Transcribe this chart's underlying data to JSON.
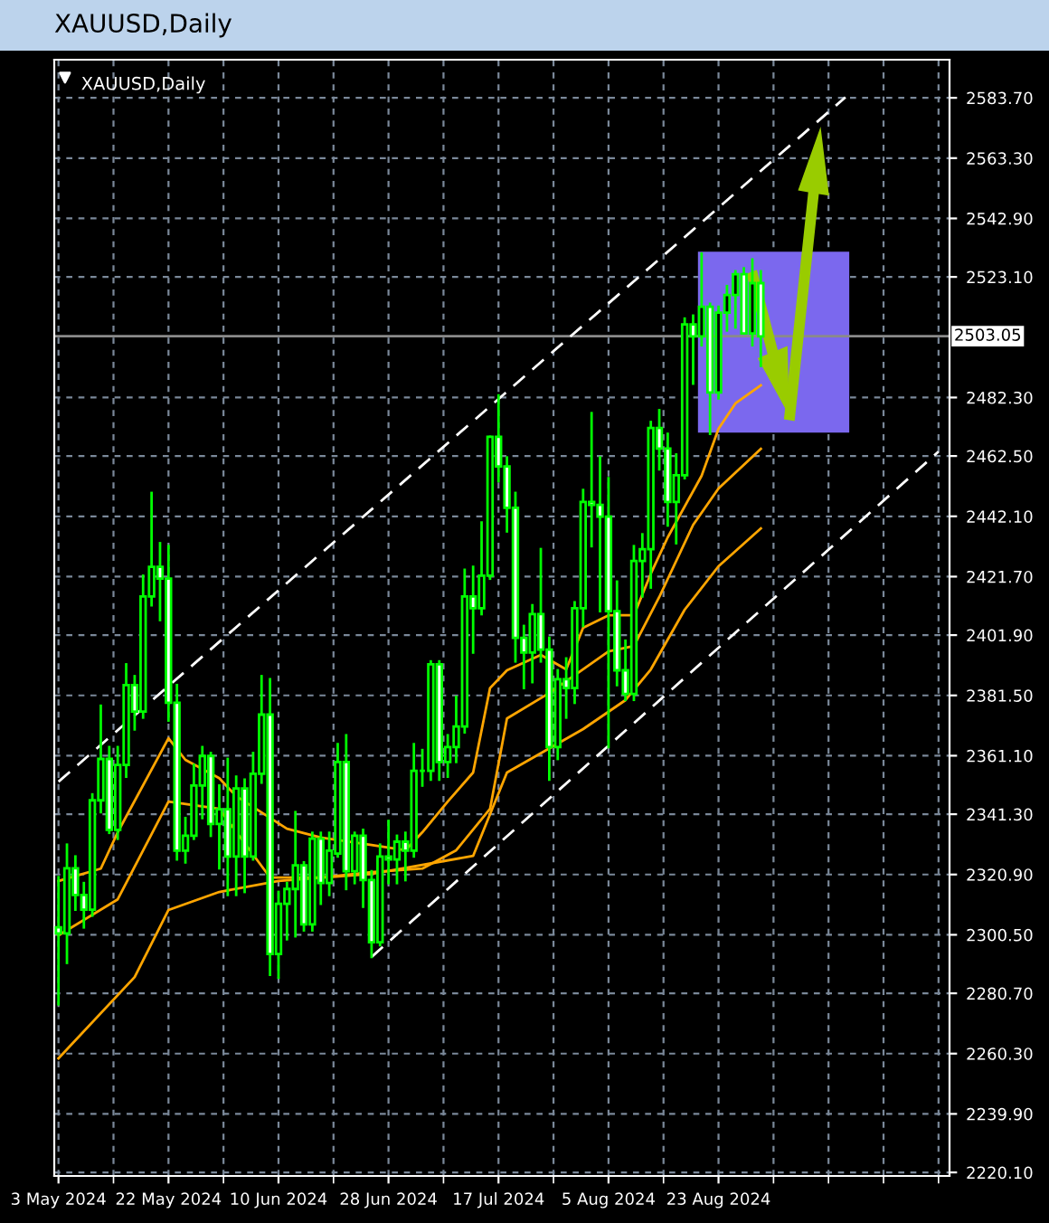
{
  "chart_data": {
    "type": "candlestick",
    "title": "XAUUSD,Daily",
    "subtitle": "XAUUSD,Daily",
    "categories": [
      "3 May 2024",
      null,
      null,
      null,
      null,
      null,
      null,
      null,
      null,
      null,
      null,
      null,
      null,
      "22 May 2024",
      null,
      null,
      null,
      null,
      null,
      null,
      null,
      null,
      null,
      null,
      null,
      null,
      "10 Jun 2024",
      null,
      null,
      null,
      null,
      null,
      null,
      null,
      null,
      null,
      null,
      null,
      null,
      "28 Jun 2024",
      null,
      null,
      null,
      null,
      null,
      null,
      null,
      null,
      null,
      null,
      null,
      null,
      "17 Jul 2024",
      null,
      null,
      null,
      null,
      null,
      null,
      null,
      null,
      null,
      null,
      null,
      null,
      "5 Aug 2024",
      null,
      null,
      null,
      null,
      null,
      null,
      null,
      null,
      null,
      null,
      null,
      null,
      "23 Aug 2024",
      null,
      null,
      null,
      null,
      null,
      null,
      null,
      null,
      null,
      null,
      null,
      null,
      null,
      null,
      null,
      null,
      null,
      null,
      null,
      null,
      null,
      null,
      null,
      null,
      null,
      null,
      null
    ],
    "ohlc": [
      [
        2303,
        2320,
        2277,
        2301
      ],
      [
        2301,
        2331,
        2291,
        2323
      ],
      [
        2323,
        2327,
        2309,
        2314
      ],
      [
        2314,
        2318,
        2303,
        2309
      ],
      [
        2309,
        2348,
        2307,
        2346
      ],
      [
        2346,
        2378,
        2342,
        2360
      ],
      [
        2360,
        2364,
        2335,
        2336
      ],
      [
        2336,
        2364,
        2333,
        2358
      ],
      [
        2358,
        2392,
        2354,
        2385
      ],
      [
        2385,
        2388,
        2370,
        2376
      ],
      [
        2376,
        2422,
        2374,
        2415
      ],
      [
        2415,
        2450,
        2412,
        2425
      ],
      [
        2425,
        2433,
        2407,
        2421
      ],
      [
        2421,
        2432,
        2373,
        2379
      ],
      [
        2379,
        2385,
        2326,
        2329
      ],
      [
        2329,
        2340,
        2325,
        2334
      ],
      [
        2334,
        2358,
        2333,
        2351
      ],
      [
        2351,
        2364,
        2340,
        2361
      ],
      [
        2361,
        2362,
        2334,
        2338
      ],
      [
        2338,
        2351,
        2323,
        2343
      ],
      [
        2343,
        2360,
        2314,
        2327
      ],
      [
        2327,
        2354,
        2314,
        2350
      ],
      [
        2350,
        2353,
        2315,
        2327
      ],
      [
        2327,
        2362,
        2326,
        2355
      ],
      [
        2355,
        2388,
        2352,
        2375
      ],
      [
        2375,
        2387,
        2287,
        2294
      ],
      [
        2294,
        2315,
        2286,
        2311
      ],
      [
        2311,
        2318,
        2299,
        2316
      ],
      [
        2316,
        2342,
        2300,
        2324
      ],
      [
        2324,
        2325,
        2302,
        2304
      ],
      [
        2304,
        2335,
        2302,
        2333
      ],
      [
        2333,
        2335,
        2311,
        2318
      ],
      [
        2318,
        2335,
        2314,
        2329
      ],
      [
        2328,
        2365,
        2327,
        2359
      ],
      [
        2359,
        2368,
        2316,
        2322
      ],
      [
        2322,
        2335,
        2318,
        2334
      ],
      [
        2334,
        2336,
        2310,
        2319
      ],
      [
        2319,
        2322,
        2293,
        2298
      ],
      [
        2298,
        2331,
        2297,
        2327
      ],
      [
        2327,
        2339,
        2318,
        2326
      ],
      [
        2326,
        2334,
        2318,
        2332
      ],
      [
        2332,
        2335,
        2319,
        2329
      ],
      [
        2329,
        2365,
        2327,
        2356
      ],
      [
        2356,
        2363,
        2351,
        2356
      ],
      [
        2356,
        2393,
        2353,
        2392
      ],
      [
        2392,
        2393,
        2353,
        2359
      ],
      [
        2359,
        2368,
        2354,
        2364
      ],
      [
        2364,
        2381,
        2359,
        2371
      ],
      [
        2371,
        2424,
        2369,
        2415
      ],
      [
        2415,
        2425,
        2396,
        2411
      ],
      [
        2411,
        2440,
        2409,
        2422
      ],
      [
        2422,
        2469,
        2421,
        2469
      ],
      [
        2469,
        2483,
        2454,
        2459
      ],
      [
        2459,
        2462,
        2437,
        2445
      ],
      [
        2445,
        2450,
        2393,
        2401
      ],
      [
        2401,
        2405,
        2384,
        2396
      ],
      [
        2396,
        2412,
        2386,
        2409
      ],
      [
        2409,
        2431,
        2393,
        2397
      ],
      [
        2397,
        2401,
        2353,
        2364
      ],
      [
        2364,
        2390,
        2360,
        2387
      ],
      [
        2387,
        2394,
        2374,
        2384
      ],
      [
        2384,
        2413,
        2379,
        2411
      ],
      [
        2411,
        2451,
        2405,
        2447
      ],
      [
        2447,
        2477,
        2432,
        2446
      ],
      [
        2446,
        2462,
        2410,
        2442
      ],
      [
        2442,
        2455,
        2364,
        2410
      ],
      [
        2410,
        2420,
        2385,
        2390
      ],
      [
        2390,
        2400,
        2380,
        2382
      ],
      [
        2382,
        2432,
        2380,
        2427
      ],
      [
        2427,
        2436,
        2415,
        2431
      ],
      [
        2431,
        2474,
        2418,
        2472
      ],
      [
        2472,
        2478,
        2458,
        2465
      ],
      [
        2465,
        2470,
        2439,
        2447
      ],
      [
        2447,
        2463,
        2433,
        2456
      ],
      [
        2456,
        2509,
        2455,
        2507
      ],
      [
        2507,
        2510,
        2487,
        2503
      ],
      [
        2503,
        2531,
        2500,
        2513
      ],
      [
        2513,
        2514,
        2470,
        2484
      ],
      [
        2484,
        2513,
        2482,
        2511
      ],
      [
        2511,
        2520,
        2505,
        2517
      ],
      [
        2517,
        2525,
        2506,
        2524
      ],
      [
        2524,
        2526,
        2504,
        2504
      ],
      [
        2504,
        2529,
        2500,
        2521
      ],
      [
        2521,
        2525,
        2493,
        2503
      ],
      null,
      null,
      null,
      null,
      null,
      null,
      null,
      null,
      null,
      null,
      null,
      null,
      null,
      null,
      null,
      null,
      null,
      null,
      null,
      null,
      null,
      null
    ],
    "series": [
      {
        "type": "line",
        "color": "#ffa500",
        "values": [
          2318.7,
          null,
          null,
          null,
          null,
          2322.9,
          null,
          2335.2,
          null,
          null,
          null,
          null,
          null,
          2367.0,
          null,
          2359.7,
          null,
          null,
          null,
          2353.5,
          null,
          2347.4,
          null,
          null,
          null,
          null,
          null,
          2336.4,
          null,
          null,
          null,
          2333.4,
          null,
          null,
          null,
          null,
          null,
          2330.9,
          null,
          null,
          null,
          2329.1,
          null,
          2335.2,
          null,
          null,
          2345.6,
          null,
          null,
          2355.4,
          null,
          2384,
          null,
          2390,
          null,
          null,
          null,
          2395.2,
          null,
          null,
          2390.3,
          null,
          2404.4,
          null,
          null,
          2408.6,
          null,
          null,
          2408.6,
          null,
          2422.7,
          null,
          2435.0,
          null,
          null,
          null,
          2455.8,
          null,
          2471.7,
          null,
          2480.3,
          null,
          null,
          2486.4,
          null,
          null,
          null,
          null,
          null,
          null,
          null,
          null,
          null,
          null,
          null,
          null,
          null,
          null,
          null,
          null,
          null,
          null,
          null,
          null,
          null,
          null
        ]
      },
      {
        "type": "line",
        "color": "#ffa500",
        "values": [
          2300.3,
          null,
          null,
          null,
          null,
          null,
          null,
          2312.5,
          null,
          null,
          null,
          null,
          null,
          2345.6,
          null,
          null,
          null,
          null,
          null,
          2343.1,
          null,
          null,
          null,
          null,
          null,
          2319.9,
          null,
          null,
          null,
          null,
          null,
          2319.9,
          null,
          null,
          null,
          null,
          null,
          2321.7,
          null,
          null,
          null,
          null,
          null,
          2322.9,
          null,
          null,
          null,
          2329.1,
          null,
          null,
          null,
          2343.1,
          null,
          2373.7,
          null,
          null,
          null,
          null,
          2382.3,
          null,
          null,
          null,
          null,
          null,
          null,
          2396.4,
          null,
          null,
          2398.2,
          null,
          null,
          2414.8,
          null,
          null,
          null,
          2439.2,
          null,
          null,
          2451.5,
          null,
          null,
          null,
          null,
          2464.9,
          null,
          null,
          null,
          null,
          null,
          null,
          null,
          null,
          null,
          null,
          null,
          null,
          null,
          null,
          null,
          null,
          null,
          null,
          null,
          null,
          null,
          null
        ]
      },
      {
        "type": "line",
        "color": "#ffa500",
        "values": [
          2258.7,
          null,
          null,
          null,
          null,
          null,
          null,
          null,
          null,
          2286.2,
          null,
          null,
          null,
          2308.9,
          null,
          null,
          null,
          null,
          null,
          2315.0,
          null,
          null,
          null,
          null,
          null,
          null,
          2318.7,
          null,
          null,
          null,
          null,
          null,
          null,
          null,
          null,
          null,
          null,
          2321.1,
          null,
          null,
          null,
          null,
          null,
          null,
          null,
          null,
          null,
          null,
          null,
          2327.2,
          null,
          null,
          null,
          2355.4,
          null,
          null,
          null,
          null,
          null,
          null,
          null,
          null,
          2370.1,
          null,
          null,
          null,
          null,
          2379.9,
          null,
          null,
          2390.3,
          null,
          null,
          null,
          2410.5,
          null,
          null,
          null,
          2425.2,
          null,
          null,
          null,
          null,
          2438.0,
          null,
          null,
          null,
          null,
          null,
          null,
          null,
          null,
          null,
          null,
          null,
          null,
          null,
          null,
          null,
          null,
          null,
          null,
          null,
          null,
          null,
          null
        ]
      },
      {
        "type": "line",
        "color": "#ffffff",
        "line_style": "dashed",
        "values": [
          2352.3,
          null,
          null,
          null,
          null,
          null,
          null,
          null,
          null,
          null,
          null,
          null,
          null,
          null,
          null,
          null,
          null,
          null,
          null,
          null,
          null,
          null,
          null,
          null,
          null,
          null,
          null,
          null,
          null,
          null,
          null,
          null,
          null,
          null,
          null,
          null,
          null,
          null,
          null,
          null,
          null,
          null,
          null,
          null,
          null,
          null,
          null,
          null,
          null,
          null,
          null,
          null,
          null,
          null,
          null,
          null,
          null,
          null,
          null,
          null,
          null,
          null,
          null,
          null,
          null,
          null,
          null,
          null,
          null,
          null,
          null,
          null,
          null,
          null,
          null,
          null,
          null,
          null,
          null,
          null,
          null,
          null,
          null,
          null,
          null,
          null,
          null,
          null,
          null,
          null,
          null,
          null,
          null,
          2583.9,
          null,
          null,
          null,
          null,
          null,
          null,
          null,
          null,
          null,
          null,
          null,
          null
        ]
      },
      {
        "type": "line",
        "color": "#ffffff",
        "line_style": "dashed",
        "values": [
          null,
          null,
          null,
          null,
          null,
          null,
          null,
          null,
          null,
          null,
          null,
          null,
          null,
          null,
          null,
          null,
          null,
          null,
          null,
          null,
          null,
          null,
          null,
          null,
          null,
          null,
          null,
          null,
          null,
          null,
          null,
          null,
          null,
          null,
          null,
          null,
          null,
          2293,
          null,
          null,
          null,
          null,
          null,
          null,
          null,
          null,
          null,
          null,
          null,
          null,
          null,
          null,
          null,
          null,
          null,
          null,
          null,
          null,
          null,
          null,
          null,
          null,
          null,
          null,
          null,
          null,
          null,
          null,
          null,
          null,
          null,
          null,
          null,
          null,
          null,
          null,
          null,
          null,
          null,
          null,
          null,
          null,
          null,
          null,
          null,
          null,
          null,
          null,
          null,
          null,
          null,
          null,
          null,
          null,
          null,
          null,
          null,
          null,
          null,
          null,
          null,
          null,
          null,
          null,
          2464,
          null
        ]
      }
    ],
    "ref_lines": [
      {
        "axis": "y",
        "value": 2503.05,
        "label": "2503.05",
        "color": "#8a8a8a"
      }
    ],
    "ylim": [
      2218.9,
      2596.6
    ],
    "yticks": [
      {
        "value": 2583.7,
        "label": "2583.70"
      },
      {
        "value": 2563.3,
        "label": "2563.30"
      },
      {
        "value": 2542.9,
        "label": "2542.90"
      },
      {
        "value": 2523.1,
        "label": "2523.10"
      },
      {
        "value": 2482.3,
        "label": "2482.30"
      },
      {
        "value": 2462.5,
        "label": "2462.50"
      },
      {
        "value": 2442.1,
        "label": "2442.10"
      },
      {
        "value": 2421.7,
        "label": "2421.70"
      },
      {
        "value": 2401.9,
        "label": "2401.90"
      },
      {
        "value": 2381.5,
        "label": "2381.50"
      },
      {
        "value": 2361.1,
        "label": "2361.10"
      },
      {
        "value": 2341.3,
        "label": "2341.30"
      },
      {
        "value": 2320.9,
        "label": "2320.90"
      },
      {
        "value": 2300.5,
        "label": "2300.50"
      },
      {
        "value": 2280.7,
        "label": "2280.70"
      },
      {
        "value": 2260.3,
        "label": "2260.30"
      },
      {
        "value": 2239.9,
        "label": "2239.90"
      },
      {
        "value": 2220.1,
        "label": "2220.10"
      }
    ],
    "grid": true
  }
}
